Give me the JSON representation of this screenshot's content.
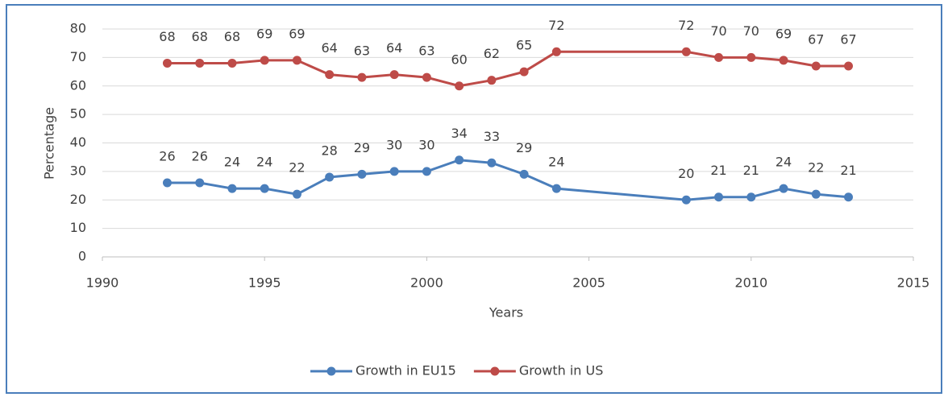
{
  "chart_data": {
    "type": "line",
    "x_label": "Years",
    "y_label": "Percentage",
    "x": [
      1992,
      1993,
      1994,
      1995,
      1996,
      1997,
      1998,
      1999,
      2000,
      2001,
      2002,
      2003,
      2004,
      2008,
      2009,
      2010,
      2011,
      2012,
      2013
    ],
    "series": [
      {
        "name": "Growth in EU15",
        "color": "#4a7ebb",
        "values": [
          26,
          26,
          24,
          24,
          22,
          28,
          29,
          30,
          30,
          34,
          33,
          29,
          24,
          20,
          21,
          21,
          24,
          22,
          21
        ]
      },
      {
        "name": "Growth in US",
        "color": "#be4b48",
        "values": [
          68,
          68,
          68,
          69,
          69,
          64,
          63,
          64,
          63,
          60,
          62,
          65,
          72,
          72,
          70,
          70,
          69,
          67,
          67
        ]
      }
    ],
    "xlim": [
      1990,
      2015
    ],
    "xticks": [
      1990,
      1995,
      2000,
      2005,
      2010,
      2015
    ],
    "ylim": [
      0,
      80
    ],
    "yticks": [
      0,
      10,
      20,
      30,
      40,
      50,
      60,
      70,
      80
    ],
    "grid": true,
    "legend": "bottom"
  }
}
